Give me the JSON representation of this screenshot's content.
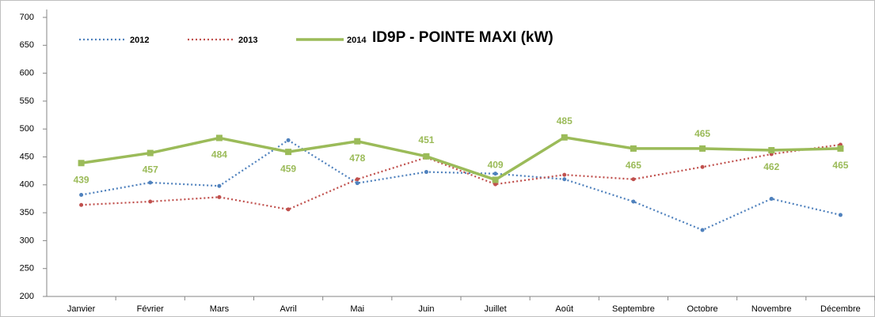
{
  "chart_data": {
    "type": "line",
    "title": "ID9P - POINTE MAXI (kW)",
    "categories": [
      "Janvier",
      "Février",
      "Mars",
      "Avril",
      "Mai",
      "Juin",
      "Juillet",
      "Août",
      "Septembre",
      "Octobre",
      "Novembre",
      "Décembre"
    ],
    "series": [
      {
        "name": "2012",
        "color": "#4f81bd",
        "values": [
          382,
          404,
          398,
          480,
          403,
          423,
          420,
          410,
          370,
          319,
          375,
          346
        ]
      },
      {
        "name": "2013",
        "color": "#c0504d",
        "values": [
          364,
          370,
          378,
          356,
          410,
          449,
          401,
          418,
          410,
          432,
          455,
          472
        ]
      },
      {
        "name": "2014",
        "color": "#9bbb59",
        "values": [
          439,
          457,
          484,
          459,
          478,
          451,
          409,
          485,
          465,
          465,
          462,
          465
        ]
      }
    ],
    "ylim": [
      200,
      700
    ],
    "yticks": [
      200,
      250,
      300,
      350,
      400,
      450,
      500,
      550,
      600,
      650,
      700
    ],
    "grid": false
  }
}
